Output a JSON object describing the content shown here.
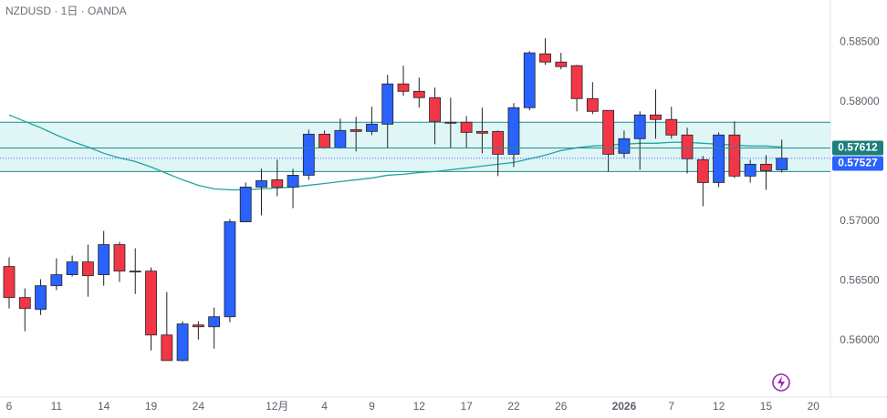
{
  "chart_data": {
    "type": "candlestick",
    "title": "NZDUSD · 1日 · OANDA",
    "categories": [
      "6",
      null,
      null,
      "11",
      null,
      null,
      "14",
      null,
      null,
      "19",
      null,
      null,
      "24",
      null,
      null,
      null,
      null,
      "12月",
      null,
      null,
      "4",
      null,
      null,
      "9",
      null,
      null,
      "12",
      null,
      null,
      "17",
      null,
      null,
      "22",
      null,
      null,
      "26",
      null,
      null,
      null,
      "2026",
      null,
      null,
      "7",
      null,
      null,
      "12",
      null,
      null,
      "15",
      null,
      null,
      "20"
    ],
    "open": [
      0.5662,
      0.5636,
      0.5626,
      0.56459,
      0.56551,
      0.56658,
      0.56551,
      0.56803,
      0.56581,
      0.56581,
      0.56046,
      0.55832,
      0.5613,
      0.56115,
      0.56199,
      0.56994,
      0.57285,
      0.57346,
      0.57285,
      0.57384,
      0.57728,
      0.57614,
      0.57766,
      0.57751,
      0.57812,
      0.58149,
      0.58087,
      0.58034,
      0.57828,
      0.57828,
      0.57751,
      0.57751,
      0.5756,
      0.5795,
      0.58401,
      0.58332,
      0.58302,
      0.58026,
      0.57927,
      0.57568,
      0.5769,
      0.57889,
      0.57851,
      0.57721,
      0.57514,
      0.57323,
      0.57721,
      0.57377,
      0.57476,
      0.5743,
      null,
      null
    ],
    "high": [
      0.56696,
      0.56436,
      0.56513,
      0.56688,
      0.56711,
      0.56803,
      0.56918,
      0.56826,
      0.56773,
      0.56612,
      0.56406,
      0.56161,
      0.56161,
      0.56276,
      0.57017,
      0.57323,
      0.57438,
      0.57514,
      0.57438,
      0.57766,
      0.57759,
      0.57858,
      0.57873,
      0.57958,
      0.58225,
      0.58302,
      0.58202,
      0.58118,
      0.58034,
      0.57881,
      0.5795,
      0.57759,
      0.57988,
      0.58424,
      0.58531,
      0.58409,
      0.58309,
      0.58164,
      0.57927,
      0.57759,
      0.57919,
      0.58103,
      0.57958,
      0.57782,
      0.57545,
      0.57743,
      0.57835,
      0.57514,
      0.57552,
      0.57682,
      null,
      null
    ],
    "low": [
      0.56268,
      0.56077,
      0.56214,
      0.56421,
      0.56536,
      0.56367,
      0.56459,
      0.5649,
      0.5639,
      0.55916,
      0.55832,
      0.55825,
      0.56008,
      0.55932,
      0.56153,
      0.56994,
      0.57048,
      0.57208,
      0.57109,
      0.57346,
      0.57606,
      0.57606,
      0.57583,
      0.57721,
      0.57614,
      0.58049,
      0.5795,
      0.57644,
      0.57614,
      0.57614,
      0.57568,
      0.57377,
      0.57453,
      0.57927,
      0.58309,
      0.58271,
      0.57919,
      0.57896,
      0.57415,
      0.57529,
      0.5743,
      0.5769,
      0.5769,
      0.57399,
      0.57124,
      0.57285,
      0.57361,
      0.57323,
      0.57262,
      0.57407,
      null,
      null
    ],
    "close": [
      0.5636,
      0.56268,
      0.56459,
      0.56551,
      0.56658,
      0.56543,
      0.56803,
      0.56581,
      0.56578,
      0.56046,
      0.55832,
      0.56138,
      0.56115,
      0.56199,
      0.56994,
      0.57285,
      0.57338,
      0.57285,
      0.57384,
      0.57728,
      0.57614,
      0.57759,
      0.57751,
      0.57812,
      0.58149,
      0.58087,
      0.58034,
      0.57835,
      0.5782,
      0.57743,
      0.57736,
      0.5756,
      0.5795,
      0.58409,
      0.58332,
      0.58294,
      0.58026,
      0.57919,
      0.5756,
      0.5769,
      0.57889,
      0.57851,
      0.57721,
      0.57522,
      0.57323,
      0.57721,
      0.57377,
      0.57476,
      0.57422,
      0.57527,
      null,
      null
    ],
    "ma": [
      0.57889,
      0.57835,
      0.57782,
      0.57721,
      0.57667,
      0.57621,
      0.57568,
      0.57529,
      0.57499,
      0.57453,
      0.57399,
      0.57346,
      0.573,
      0.5727,
      0.57262,
      0.57262,
      0.5727,
      0.57277,
      0.57285,
      0.573,
      0.57315,
      0.57331,
      0.57346,
      0.57361,
      0.57384,
      0.57392,
      0.57407,
      0.57415,
      0.5743,
      0.57445,
      0.57461,
      0.57476,
      0.57491,
      0.57522,
      0.57552,
      0.57591,
      0.57614,
      0.57629,
      0.57637,
      0.57644,
      0.57652,
      0.57652,
      0.5766,
      0.5766,
      0.57652,
      0.57644,
      0.57637,
      0.57629,
      0.57629,
      0.57621,
      null,
      null
    ],
    "up_color": "#2962ff",
    "down_color": "#f23645",
    "ma_color": "#22a69a",
    "zone": [
      0.57828,
      0.57415
    ],
    "zone_color": "#1e8c8c",
    "price_labels": [
      0.57612,
      0.57527
    ],
    "price_label_colors": [
      "#1e7f7a",
      "#2962ff"
    ],
    "ylim": [
      0.55526,
      0.58852
    ],
    "yticks": [
      {
        "value": 0.585,
        "label": "0.58500"
      },
      {
        "value": 0.58,
        "label": "0.58000"
      },
      {
        "value": 0.57,
        "label": "0.57000"
      },
      {
        "value": 0.565,
        "label": "0.56500"
      },
      {
        "value": 0.56,
        "label": "0.56000"
      }
    ]
  }
}
